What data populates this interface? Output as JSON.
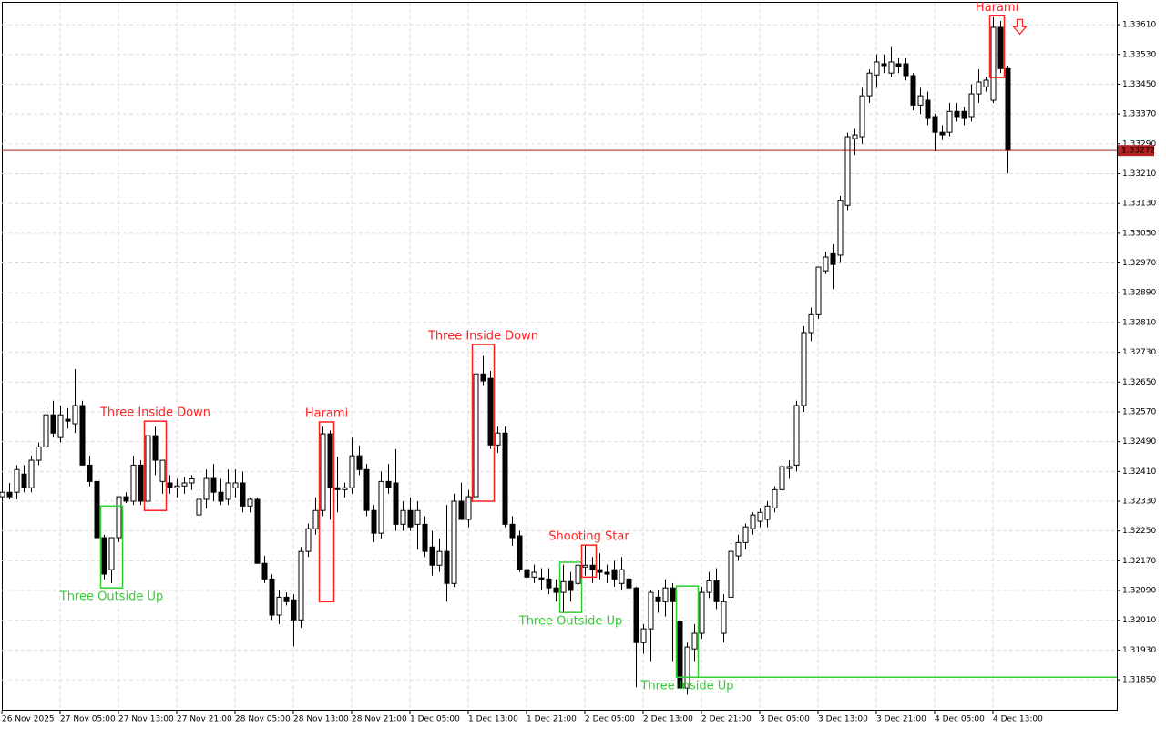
{
  "chart_data": {
    "type": "candlestick",
    "categories": [
      "26 Nov 2025",
      null,
      null,
      null,
      null,
      null,
      null,
      null,
      "27 Nov 05:00",
      null,
      null,
      null,
      null,
      null,
      null,
      null,
      "27 Nov 13:00",
      null,
      null,
      null,
      null,
      null,
      null,
      null,
      "27 Nov 21:00",
      null,
      null,
      null,
      null,
      null,
      null,
      null,
      "28 Nov 05:00",
      null,
      null,
      null,
      null,
      null,
      null,
      null,
      "28 Nov 13:00",
      null,
      null,
      null,
      null,
      null,
      null,
      null,
      "28 Nov 21:00",
      null,
      null,
      null,
      null,
      null,
      null,
      null,
      "1 Dec 05:00",
      null,
      null,
      null,
      null,
      null,
      null,
      null,
      "1 Dec 13:00",
      null,
      null,
      null,
      null,
      null,
      null,
      null,
      "1 Dec 21:00",
      null,
      null,
      null,
      null,
      null,
      null,
      null,
      "2 Dec 05:00",
      null,
      null,
      null,
      null,
      null,
      null,
      null,
      "2 Dec 13:00",
      null,
      null,
      null,
      null,
      null,
      null,
      null,
      "2 Dec 21:00",
      null,
      null,
      null,
      null,
      null,
      null,
      null,
      "3 Dec 05:00",
      null,
      null,
      null,
      null,
      null,
      null,
      null,
      "3 Dec 13:00",
      null,
      null,
      null,
      null,
      null,
      null,
      null,
      "3 Dec 21:00",
      null,
      null,
      null,
      null,
      null,
      null,
      null,
      "4 Dec 05:00",
      null,
      null,
      null,
      null,
      null,
      null,
      null,
      "4 Dec 13:00",
      null,
      null
    ],
    "open": [
      1.32342,
      1.32354,
      1.32354,
      1.32403,
      1.32366,
      1.3244,
      1.32476,
      1.32562,
      1.32501,
      1.3255,
      1.32538,
      1.32587,
      1.32427,
      1.32383,
      1.32232,
      1.32146,
      1.32232,
      1.32342,
      1.3233,
      1.32427,
      1.3233,
      1.32506,
      1.32383,
      1.32379,
      1.32366,
      1.32371,
      1.32379,
      1.32293,
      1.32335,
      1.32391,
      1.32354,
      1.32335,
      1.32366,
      1.32379,
      1.32317,
      1.32335,
      1.32163,
      1.32121,
      1.32024,
      1.32072,
      1.32065,
      1.32011,
      1.32195,
      1.32256,
      1.32305,
      1.32511,
      1.32366,
      1.32361,
      1.32366,
      1.32452,
      1.32415,
      1.32305,
      1.32244,
      1.32383,
      1.32379,
      1.32268,
      1.32305,
      1.32268,
      1.32268,
      1.32207,
      1.32158,
      1.32195,
      1.32109,
      1.3233,
      1.32281,
      1.32342,
      1.32672,
      1.3266,
      1.32481,
      1.32513,
      1.32268,
      1.32237,
      1.32146,
      1.32126,
      1.32124,
      1.32121,
      1.32097,
      1.32085,
      1.32114,
      1.32109,
      1.32153,
      1.32158,
      1.32146,
      1.32139,
      1.32146,
      1.32109,
      1.32121,
      1.32097,
      1.3195,
      1.31987,
      1.32072,
      1.3206,
      1.32097,
      1.32006,
      1.31828,
      1.31933,
      1.31975,
      1.32085,
      1.32116,
      1.31975,
      1.32072,
      1.32183,
      1.32219,
      1.32256,
      1.32276,
      1.32281,
      1.32312,
      1.32361,
      1.32418,
      1.32427,
      1.32587,
      1.32783,
      1.32831,
      1.32949,
      1.32995,
      1.32991,
      1.33125,
      1.33304,
      1.33309,
      1.33419,
      1.33475,
      1.33505,
      1.3348,
      1.33505,
      1.33505,
      1.33473,
      1.33394,
      1.33407,
      1.33363,
      1.33321,
      1.33321,
      1.33377,
      1.33377,
      1.33363,
      1.33424,
      1.33443,
      1.33407,
      1.33603,
      1.33492
    ],
    "high": [
      1.32366,
      1.32379,
      1.32427,
      1.32427,
      1.32452,
      1.32488,
      1.32587,
      1.326,
      1.32587,
      1.3258,
      1.32685,
      1.326,
      1.32452,
      1.3239,
      1.3224,
      1.32232,
      1.32342,
      1.32354,
      1.32452,
      1.3244,
      1.3252,
      1.3253,
      1.3244,
      1.324,
      1.3239,
      1.32395,
      1.324,
      1.32354,
      1.32415,
      1.3243,
      1.3239,
      1.32415,
      1.32415,
      1.3241,
      1.3234,
      1.3234,
      1.32183,
      1.32134,
      1.3209,
      1.32085,
      1.3208,
      1.32207,
      1.3227,
      1.3234,
      1.3253,
      1.3252,
      1.3245,
      1.3238,
      1.325,
      1.3248,
      1.3243,
      1.3232,
      1.3241,
      1.3243,
      1.3247,
      1.3233,
      1.3234,
      1.3233,
      1.3229,
      1.3225,
      1.3223,
      1.3232,
      1.3235,
      1.3238,
      1.3236,
      1.327,
      1.3272,
      1.3268,
      1.3253,
      1.3253,
      1.3229,
      1.3225,
      1.3217,
      1.3216,
      1.3215,
      1.3215,
      1.3212,
      1.3216,
      1.3214,
      1.3217,
      1.3221,
      1.3218,
      1.3219,
      1.3216,
      1.3217,
      1.3218,
      1.3213,
      1.321,
      1.32,
      1.3209,
      1.3209,
      1.3212,
      1.3211,
      1.3203,
      1.3195,
      1.32,
      1.321,
      1.3214,
      1.3215,
      1.3208,
      1.3221,
      1.3224,
      1.3227,
      1.323,
      1.3231,
      1.3233,
      1.3237,
      1.3243,
      1.3244,
      1.326,
      1.328,
      1.3285,
      1.3296,
      1.33,
      1.3302,
      1.3315,
      1.3332,
      1.3333,
      1.3344,
      1.3349,
      1.3353,
      1.3353,
      1.3355,
      1.3352,
      1.3352,
      1.3348,
      1.3344,
      1.3343,
      1.3337,
      1.3334,
      1.334,
      1.334,
      1.3339,
      1.3345,
      1.3349,
      1.3347,
      1.3363,
      1.3362,
      1.335
    ],
    "low": [
      1.3233,
      1.32335,
      1.32335,
      1.32354,
      1.32354,
      1.32427,
      1.32464,
      1.32501,
      1.32488,
      1.32525,
      1.32513,
      1.32427,
      1.3237,
      1.32232,
      1.3212,
      1.3211,
      1.3222,
      1.32325,
      1.3232,
      1.3232,
      1.3232,
      1.324,
      1.3235,
      1.3235,
      1.3234,
      1.3235,
      1.3236,
      1.3228,
      1.3231,
      1.3233,
      1.3232,
      1.3232,
      1.3234,
      1.323,
      1.323,
      1.32163,
      1.3211,
      1.32011,
      1.32,
      1.3205,
      1.3194,
      1.3199,
      1.3218,
      1.3224,
      1.3229,
      1.3228,
      1.323,
      1.3234,
      1.3235,
      1.324,
      1.3229,
      1.3222,
      1.3223,
      1.3235,
      1.3225,
      1.3225,
      1.3225,
      1.322,
      1.3218,
      1.3213,
      1.3214,
      1.3206,
      1.321,
      1.3228,
      1.3226,
      1.3233,
      1.3264,
      1.3247,
      1.3246,
      1.3226,
      1.3221,
      1.3214,
      1.3211,
      1.3211,
      1.3209,
      1.3208,
      1.3206,
      1.3203,
      1.3206,
      1.3208,
      1.3213,
      1.3211,
      1.3212,
      1.3211,
      1.321,
      1.3209,
      1.3207,
      1.3183,
      1.3192,
      1.319,
      1.3203,
      1.3202,
      1.319,
      1.31816,
      1.3181,
      1.319,
      1.3196,
      1.3207,
      1.3204,
      1.3195,
      1.3206,
      1.3217,
      1.322,
      1.3224,
      1.3226,
      1.3226,
      1.323,
      1.3235,
      1.3239,
      1.3241,
      1.3257,
      1.3276,
      1.3282,
      1.3294,
      1.329,
      1.3297,
      1.3311,
      1.3326,
      1.3329,
      1.334,
      1.3344,
      1.3348,
      1.3347,
      1.3348,
      1.3346,
      1.3338,
      1.3337,
      1.3334,
      1.3327,
      1.333,
      1.3331,
      1.3335,
      1.3334,
      1.3335,
      1.334,
      1.3343,
      1.334,
      1.3348,
      1.33211
    ],
    "close": [
      1.32354,
      1.32342,
      1.32415,
      1.32366,
      1.3244,
      1.32476,
      1.32562,
      1.32513,
      1.32562,
      1.32545,
      1.32587,
      1.32427,
      1.32383,
      1.32232,
      1.32134,
      1.32232,
      1.32342,
      1.3233,
      1.32427,
      1.3233,
      1.32506,
      1.3244,
      1.3244,
      1.32366,
      1.32371,
      1.32379,
      1.3239,
      1.32335,
      1.32391,
      1.32354,
      1.3233,
      1.32379,
      1.32379,
      1.32317,
      1.32335,
      1.32163,
      1.32121,
      1.32024,
      1.32072,
      1.3206,
      1.32011,
      1.32195,
      1.32256,
      1.32305,
      1.32511,
      1.32366,
      1.32361,
      1.32366,
      1.32452,
      1.32415,
      1.32305,
      1.32244,
      1.32383,
      1.32366,
      1.32268,
      1.32305,
      1.32261,
      1.32305,
      1.32195,
      1.32158,
      1.32195,
      1.32109,
      1.3233,
      1.32281,
      1.32342,
      1.32672,
      1.32653,
      1.32481,
      1.32513,
      1.32268,
      1.32232,
      1.32146,
      1.32126,
      1.32139,
      1.32121,
      1.32097,
      1.32085,
      1.32114,
      1.3209,
      1.32158,
      1.32158,
      1.32146,
      1.32139,
      1.32134,
      1.32121,
      1.32146,
      1.32097,
      1.3195,
      1.31987,
      1.32085,
      1.3206,
      1.32097,
      1.3206,
      1.31828,
      1.31938,
      1.31975,
      1.32085,
      1.32116,
      1.3206,
      1.3206,
      1.32195,
      1.32219,
      1.32261,
      1.32293,
      1.323,
      1.32317,
      1.32361,
      1.32423,
      1.32423,
      1.32587,
      1.32783,
      1.32831,
      1.32959,
      1.32986,
      1.32966,
      1.33137,
      1.33309,
      1.33314,
      1.33419,
      1.3348,
      1.3351,
      1.335,
      1.3351,
      1.33497,
      1.33473,
      1.33394,
      1.33419,
      1.33358,
      1.33321,
      1.33314,
      1.33377,
      1.33363,
      1.33358,
      1.33424,
      1.33456,
      1.33461,
      1.33603,
      1.33492,
      1.33272
    ],
    "ylim": [
      1.31767,
      1.33669
    ],
    "yticks": [
      {
        "value": 1.3361,
        "label": "1.33610"
      },
      {
        "value": 1.3353,
        "label": "1.33530"
      },
      {
        "value": 1.3345,
        "label": "1.33450"
      },
      {
        "value": 1.3337,
        "label": "1.33370"
      },
      {
        "value": 1.3329,
        "label": "1.33290"
      },
      {
        "value": 1.3321,
        "label": "1.33210"
      },
      {
        "value": 1.3313,
        "label": "1.33130"
      },
      {
        "value": 1.3305,
        "label": "1.33050"
      },
      {
        "value": 1.3297,
        "label": "1.32970"
      },
      {
        "value": 1.3289,
        "label": "1.32890"
      },
      {
        "value": 1.3281,
        "label": "1.32810"
      },
      {
        "value": 1.3273,
        "label": "1.32730"
      },
      {
        "value": 1.3265,
        "label": "1.32650"
      },
      {
        "value": 1.3257,
        "label": "1.32570"
      },
      {
        "value": 1.3249,
        "label": "1.32490"
      },
      {
        "value": 1.3241,
        "label": "1.32410"
      },
      {
        "value": 1.3233,
        "label": "1.32330"
      },
      {
        "value": 1.3225,
        "label": "1.32250"
      },
      {
        "value": 1.3217,
        "label": "1.32170"
      },
      {
        "value": 1.3209,
        "label": "1.32090"
      },
      {
        "value": 1.3201,
        "label": "1.32010"
      },
      {
        "value": 1.3193,
        "label": "1.31930"
      },
      {
        "value": 1.3185,
        "label": "1.31850"
      }
    ],
    "grid": true,
    "current_price": {
      "value": 1.33272,
      "label": "1.33272",
      "color": "#b22222"
    },
    "patterns": [
      {
        "label": "Three Outside Up",
        "color": "#32cd32",
        "from": 14,
        "to": 16,
        "top": 1.32317,
        "bottom": 1.32097,
        "label_side": "below"
      },
      {
        "label": "Three Inside Down",
        "color": "#ff2020",
        "from": 20,
        "to": 22,
        "top": 1.32545,
        "bottom": 1.32305,
        "label_side": "above"
      },
      {
        "label": "Harami",
        "color": "#ff2020",
        "from": 44,
        "to": 45,
        "top": 1.32543,
        "bottom": 1.3206,
        "label_side": "above"
      },
      {
        "label": "Three Inside Down",
        "color": "#ff2020",
        "from": 65,
        "to": 67,
        "top": 1.32751,
        "bottom": 1.3233,
        "label_side": "above"
      },
      {
        "label": "Three Outside Up",
        "color": "#32cd32",
        "from": 77,
        "to": 79,
        "top": 1.32166,
        "bottom": 1.32031,
        "label_side": "below"
      },
      {
        "label": "Shooting Star",
        "color": "#ff2020",
        "from": 80,
        "to": 81,
        "top": 1.32212,
        "bottom": 1.32126,
        "label_side": "above"
      },
      {
        "label": "Three Inside Up",
        "color": "#32cd32",
        "from": 93,
        "to": 95,
        "top": 1.32102,
        "bottom": 1.31857,
        "label_side": "below"
      },
      {
        "label": "Harami",
        "color": "#ff2020",
        "from": 136,
        "to": 137,
        "top": 1.33634,
        "bottom": 1.33468,
        "label_side": "above"
      }
    ]
  }
}
